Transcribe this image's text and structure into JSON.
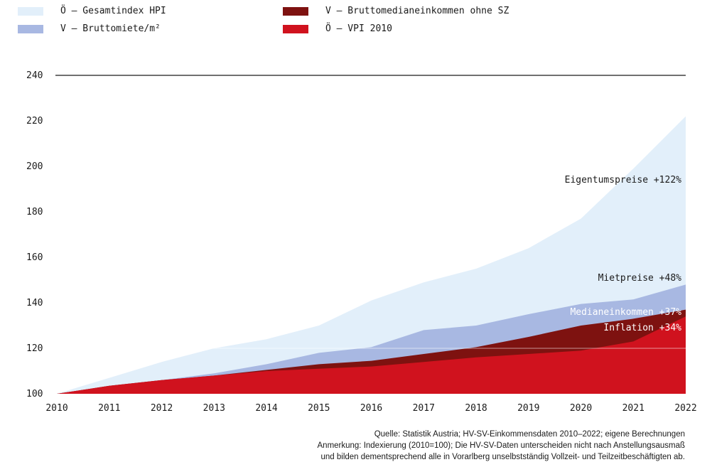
{
  "legend": [
    {
      "label": "Ö – Gesamtindex HPI",
      "color": "#e2effa"
    },
    {
      "label": "V – Bruttomiete/m²",
      "color": "#a8b8e2"
    },
    {
      "label": "V – Bruttomedianeinkommen ohne SZ",
      "color": "#7e1210"
    },
    {
      "label": "Ö – VPI 2010",
      "color": "#d0121e"
    }
  ],
  "source": {
    "line1": "Quelle: Statistik Austria; HV-SV-Einkommensdaten 2010–2022; eigene Berechnungen",
    "line2": "Anmerkung: Indexierung (2010=100); Die HV-SV-Daten unterscheiden nicht nach Anstellungsausmaß",
    "line3": "und bilden dementsprechend alle in Vorarlberg unselbstständig Vollzeit- und Teilzeitbeschäftigten ab."
  },
  "chart_data": {
    "type": "area",
    "x": [
      2010,
      2011,
      2012,
      2013,
      2014,
      2015,
      2016,
      2017,
      2018,
      2019,
      2020,
      2021,
      2022
    ],
    "ylim": [
      100,
      240
    ],
    "yticks": [
      100,
      120,
      140,
      160,
      180,
      200,
      220,
      240
    ],
    "stacked": false,
    "series": [
      {
        "name": "Ö – Gesamtindex HPI",
        "color": "#e2effa",
        "values": [
          100,
          107,
          114,
          120,
          124,
          130,
          141,
          149,
          155,
          164,
          177,
          199,
          222
        ]
      },
      {
        "name": "V – Bruttomiete/m²",
        "color": "#a8b8e2",
        "values": [
          100,
          103.5,
          106,
          109,
          113,
          118,
          120.5,
          128,
          130,
          135,
          139.5,
          141.5,
          148
        ]
      },
      {
        "name": "V – Bruttomedianeinkommen ohne SZ",
        "color": "#7e1210",
        "values": [
          100,
          103.5,
          106,
          108,
          110.5,
          113,
          114.5,
          117.5,
          120.5,
          125,
          130,
          133,
          137
        ]
      },
      {
        "name": "Ö – VPI 2010",
        "color": "#d0121e",
        "values": [
          100,
          103.5,
          106,
          108,
          110,
          111,
          112,
          114,
          116,
          117.5,
          119,
          123,
          134
        ]
      }
    ],
    "annotations": [
      {
        "text": "Eigentumspreise +122%",
        "x": 2022,
        "y": 194,
        "color": "#1a1a1a"
      },
      {
        "text": "Mietpreise +48%",
        "x": 2022,
        "y": 151,
        "color": "#1a1a1a"
      },
      {
        "text": "Medianeinkommen +37%",
        "x": 2022,
        "y": 136,
        "color": "#ffffff"
      },
      {
        "text": "Inflation +34%",
        "x": 2022,
        "y": 129,
        "color": "#ffffff"
      }
    ]
  }
}
